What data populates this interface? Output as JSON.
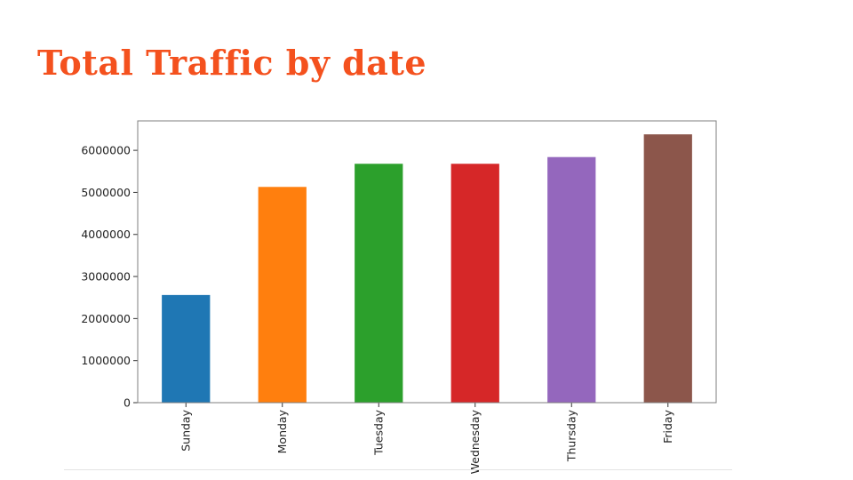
{
  "slide": {
    "title": "Total Traffic by date",
    "title_color": "#f4511e"
  },
  "chart_data": {
    "type": "bar",
    "categories": [
      "Sunday",
      "Monday",
      "Tuesday",
      "Wednesday",
      "Thursday",
      "Friday"
    ],
    "values": [
      2560000,
      5130000,
      5680000,
      5680000,
      5840000,
      6380000
    ],
    "colors": [
      "#1f77b4",
      "#ff7f0e",
      "#2ca02c",
      "#d62728",
      "#9467bd",
      "#8c564b"
    ],
    "ylim": [
      0,
      6700000
    ],
    "yticks": [
      0,
      1000000,
      2000000,
      3000000,
      4000000,
      5000000,
      6000000
    ],
    "ytick_labels": [
      "0",
      "1000000",
      "2000000",
      "3000000",
      "4000000",
      "5000000",
      "6000000"
    ],
    "grid": false,
    "legend": "none",
    "x_tick_rotation": "vertical"
  }
}
